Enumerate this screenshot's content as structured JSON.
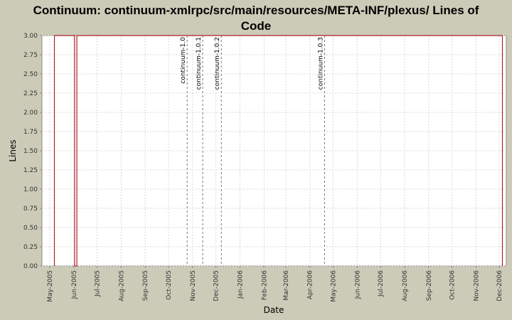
{
  "chart_data": {
    "type": "line",
    "title_lines": [
      "Continuum: continuum-xmlrpc/src/main/resources/META-INF/plexus/ Lines of",
      "Code"
    ],
    "xlabel": "Date",
    "ylabel": "Lines",
    "ylim": [
      0,
      3.0
    ],
    "y_ticks": [
      "0.00",
      "0.25",
      "0.50",
      "0.75",
      "1.00",
      "1.25",
      "1.50",
      "1.75",
      "2.00",
      "2.25",
      "2.50",
      "2.75",
      "3.00"
    ],
    "xlim": [
      "2005-04-21",
      "2006-12-10"
    ],
    "x_ticks": [
      {
        "label": "May-2005",
        "date": "2005-05-01"
      },
      {
        "label": "Jun-2005",
        "date": "2005-06-01"
      },
      {
        "label": "Jul-2005",
        "date": "2005-07-01"
      },
      {
        "label": "Aug-2005",
        "date": "2005-08-01"
      },
      {
        "label": "Sep-2005",
        "date": "2005-09-01"
      },
      {
        "label": "Oct-2005",
        "date": "2005-10-01"
      },
      {
        "label": "Nov-2005",
        "date": "2005-11-01"
      },
      {
        "label": "Dec-2005",
        "date": "2005-12-01"
      },
      {
        "label": "Jan-2006",
        "date": "2006-01-01"
      },
      {
        "label": "Feb-2006",
        "date": "2006-02-01"
      },
      {
        "label": "Mar-2006",
        "date": "2006-03-01"
      },
      {
        "label": "Apr-2006",
        "date": "2006-04-01"
      },
      {
        "label": "May-2006",
        "date": "2006-05-01"
      },
      {
        "label": "Jun-2006",
        "date": "2006-06-01"
      },
      {
        "label": "Jul-2006",
        "date": "2006-07-01"
      },
      {
        "label": "Aug-2006",
        "date": "2006-08-01"
      },
      {
        "label": "Sep-2006",
        "date": "2006-09-01"
      },
      {
        "label": "Oct-2006",
        "date": "2006-10-01"
      },
      {
        "label": "Nov-2006",
        "date": "2006-11-01"
      },
      {
        "label": "Dec-2006",
        "date": "2006-12-01"
      }
    ],
    "series": [
      {
        "color": "#b0202a",
        "points": [
          {
            "x": "2005-05-07",
            "y": 0
          },
          {
            "x": "2005-05-07",
            "y": 3
          },
          {
            "x": "2005-06-02",
            "y": 3
          },
          {
            "x": "2005-06-02",
            "y": 0
          },
          {
            "x": "2005-06-05",
            "y": 0
          },
          {
            "x": "2005-06-05",
            "y": 3
          },
          {
            "x": "2006-12-05",
            "y": 3
          },
          {
            "x": "2006-12-05",
            "y": 0
          }
        ]
      }
    ],
    "markers": [
      {
        "label": "continuum-1.0",
        "x": "2005-10-25"
      },
      {
        "label": "continuum-1.0.1",
        "x": "2005-11-14"
      },
      {
        "label": "continuum-1.0.2",
        "x": "2005-12-08"
      },
      {
        "label": "continuum-1.0.3",
        "x": "2006-04-20"
      }
    ],
    "grid": true,
    "colors": {
      "background": "#cbcbb8",
      "plot_bg": "#ffffff",
      "grid": "#d8d8d8",
      "marker": "#777777",
      "axis": "#888888"
    }
  }
}
